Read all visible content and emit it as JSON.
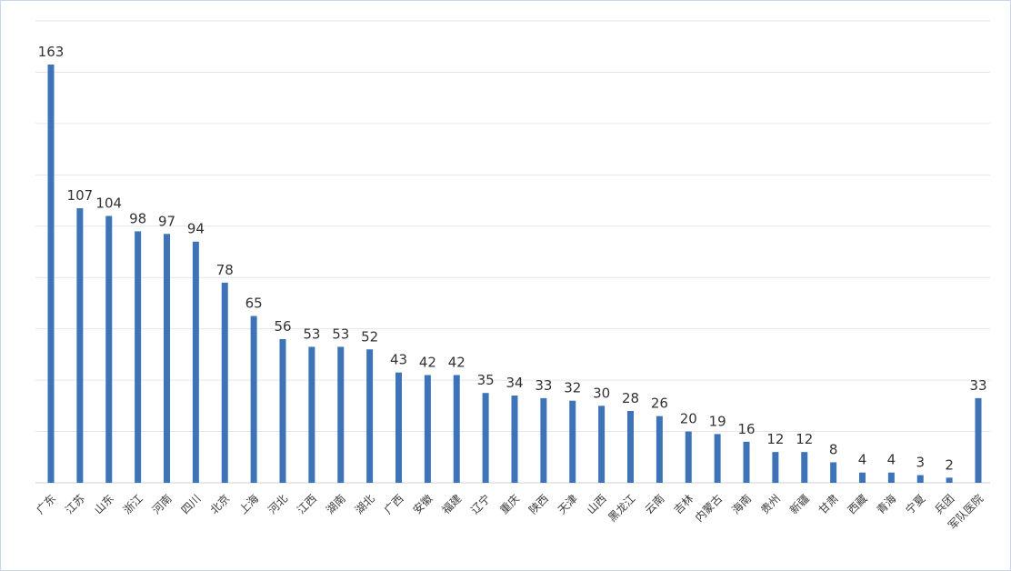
{
  "chart_data": {
    "type": "bar",
    "categories": [
      "广东",
      "江苏",
      "山东",
      "浙江",
      "河南",
      "四川",
      "北京",
      "上海",
      "河北",
      "江西",
      "湖南",
      "湖北",
      "广西",
      "安徽",
      "福建",
      "辽宁",
      "重庆",
      "陕西",
      "天津",
      "山西",
      "黑龙江",
      "云南",
      "吉林",
      "内蒙古",
      "海南",
      "贵州",
      "新疆",
      "甘肃",
      "西藏",
      "青海",
      "宁夏",
      "兵团",
      "军队医院"
    ],
    "values": [
      163,
      107,
      104,
      98,
      97,
      94,
      78,
      65,
      56,
      53,
      53,
      52,
      43,
      42,
      42,
      35,
      34,
      33,
      32,
      30,
      28,
      26,
      20,
      19,
      16,
      12,
      12,
      8,
      4,
      4,
      3,
      2,
      33
    ],
    "title": "",
    "xlabel": "",
    "ylabel": "",
    "ylim": [
      0,
      180
    ],
    "grid": true,
    "bar_color": "#3f73b8",
    "grid_color": "#dfe6f0",
    "data_labels": true
  }
}
